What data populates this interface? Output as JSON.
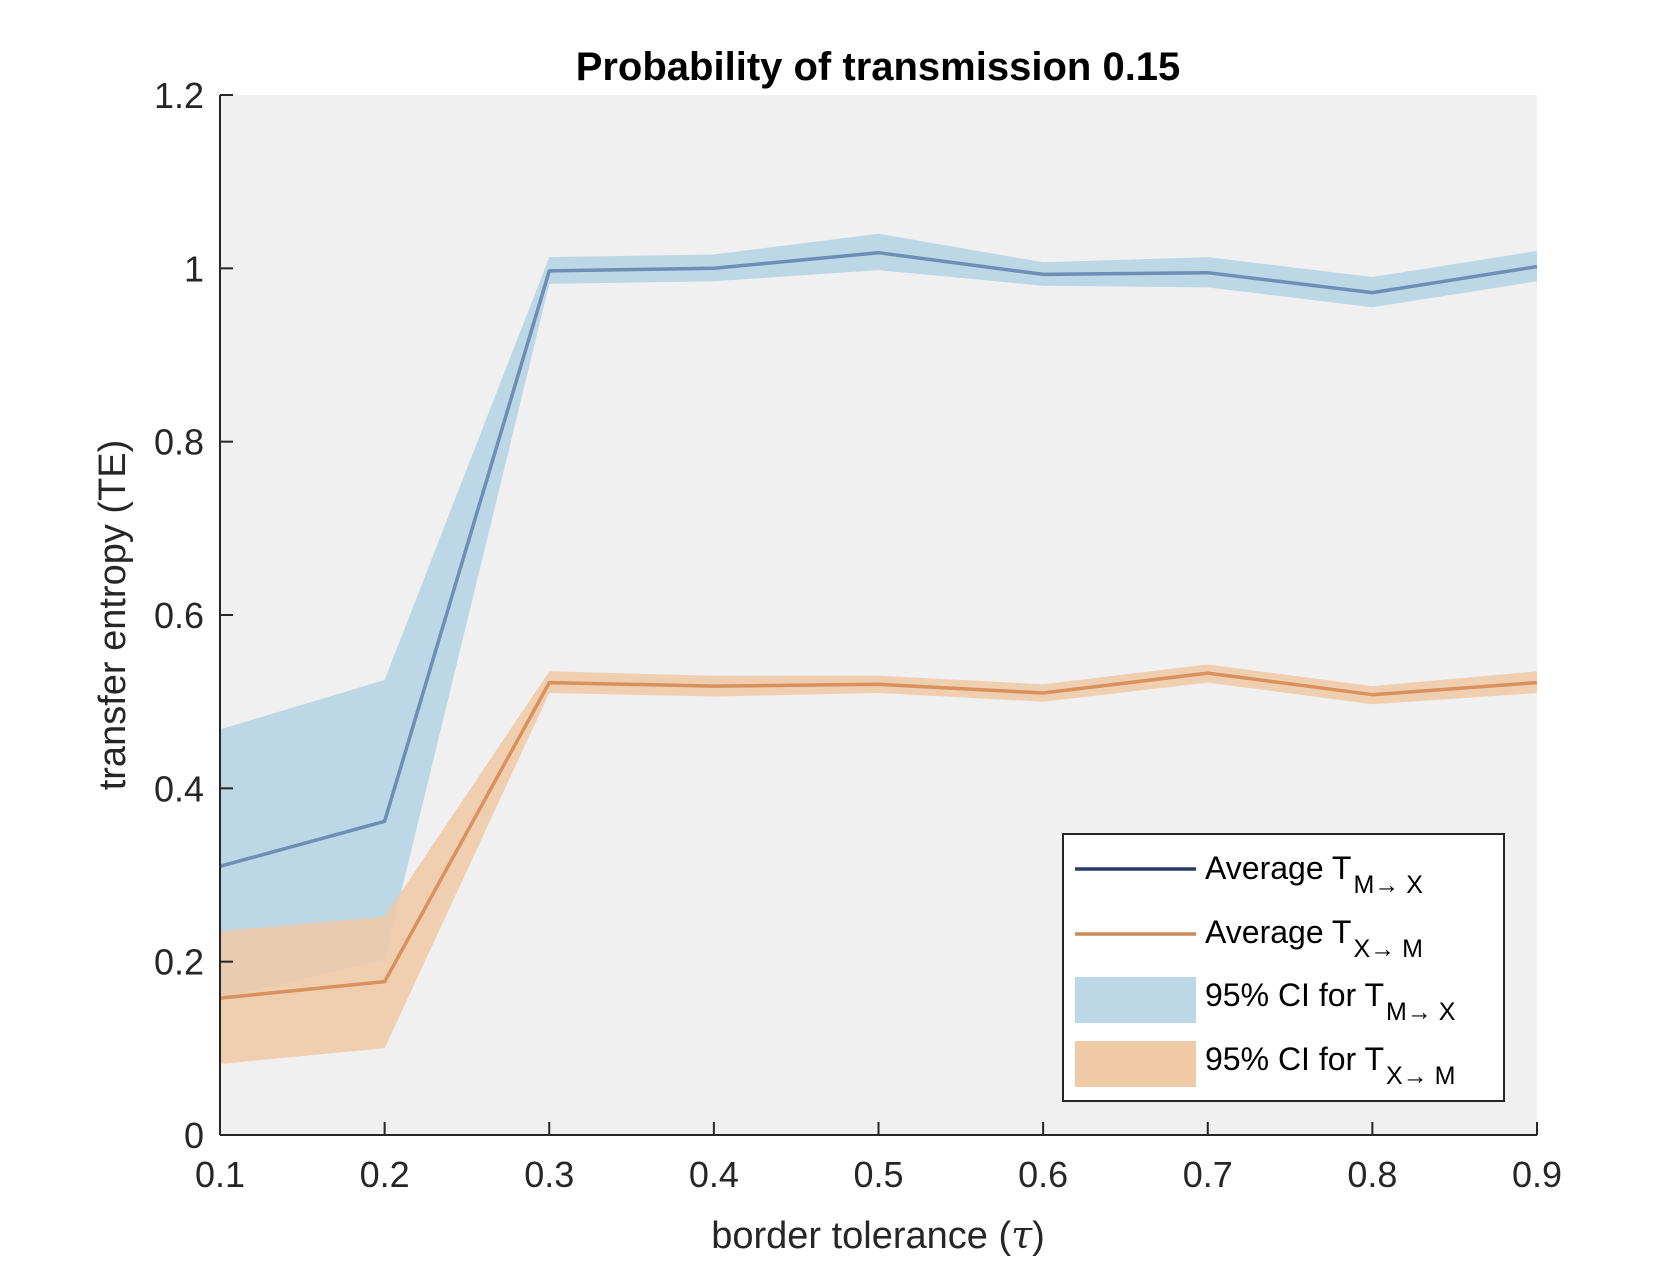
{
  "chart_data": {
    "type": "line",
    "title": "Probability of transmission 0.15",
    "xlabel": "border tolerance (",
    "xlabel_symbol": "τ",
    "xlabel_suffix": ")",
    "ylabel": "transfer entropy (TE)",
    "x": [
      0.1,
      0.2,
      0.3,
      0.4,
      0.5,
      0.6,
      0.7,
      0.8,
      0.9
    ],
    "xlim": [
      0.1,
      0.9
    ],
    "ylim": [
      0,
      1.2
    ],
    "x_ticks": [
      "0.1",
      "0.2",
      "0.3",
      "0.4",
      "0.5",
      "0.6",
      "0.7",
      "0.8",
      "0.9"
    ],
    "y_ticks": [
      "0",
      "0.2",
      "0.4",
      "0.6",
      "0.8",
      "1",
      "1.2"
    ],
    "grid": false,
    "legend_position": "bottom-right",
    "series": [
      {
        "name": "Average T",
        "subscript": "M→ X",
        "color": "#6f8db5",
        "legend_color": "#2b3a6b",
        "values": [
          0.31,
          0.362,
          0.997,
          1.0,
          1.018,
          0.993,
          0.995,
          0.972,
          1.002
        ]
      },
      {
        "name": "Average T",
        "subscript": "X→ M",
        "color": "#d9915e",
        "legend_color": "#c98a5c",
        "values": [
          0.158,
          0.177,
          0.522,
          0.518,
          0.52,
          0.51,
          0.533,
          0.508,
          0.522
        ]
      }
    ],
    "bands": [
      {
        "name": "95% CI for T",
        "subscript": "M→ X",
        "color": "#bcd7e6",
        "lower": [
          0.158,
          0.202,
          0.982,
          0.985,
          0.998,
          0.98,
          0.978,
          0.955,
          0.985
        ],
        "upper": [
          0.468,
          0.525,
          1.013,
          1.016,
          1.04,
          1.007,
          1.013,
          0.99,
          1.02
        ]
      },
      {
        "name": "95% CI for T",
        "subscript": "X→ M",
        "color": "#f0c9a6",
        "lower": [
          0.082,
          0.1,
          0.51,
          0.506,
          0.51,
          0.5,
          0.522,
          0.497,
          0.51
        ],
        "upper": [
          0.235,
          0.252,
          0.535,
          0.53,
          0.53,
          0.52,
          0.543,
          0.518,
          0.535
        ]
      }
    ],
    "colors": {
      "axes_background": "#f0f0f0",
      "axis": "#262626",
      "band_overlap": "#cdbba3"
    }
  }
}
